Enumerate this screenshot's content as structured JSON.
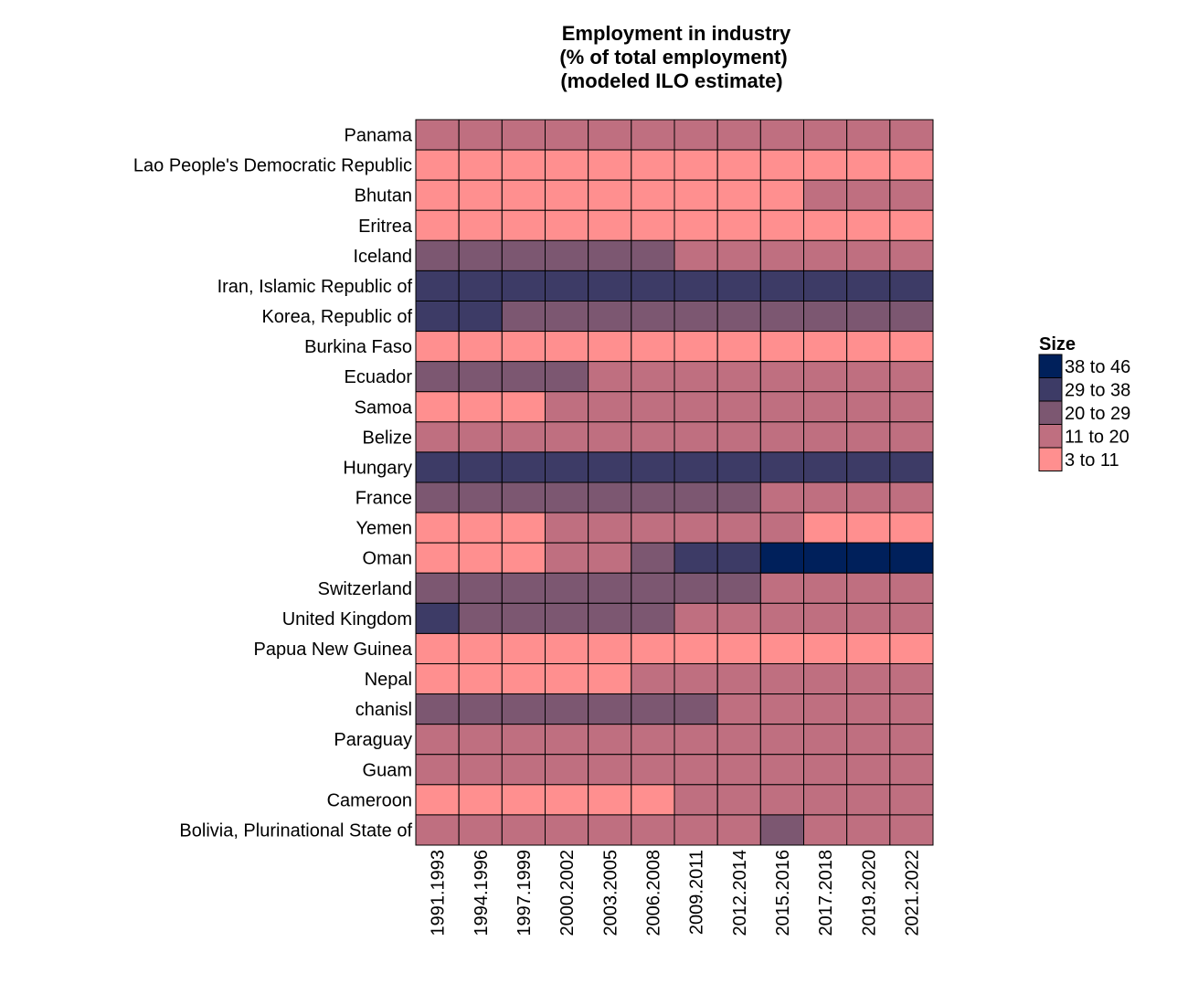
{
  "chart_data": {
    "type": "heatmap",
    "title_lines": [
      "Employment in industry",
      "(% of total employment)",
      "(modeled ILO estimate)"
    ],
    "xlabel": "",
    "ylabel": "",
    "x_categories": [
      "1991.1993",
      "1994.1996",
      "1997.1999",
      "2000.2002",
      "2003.2005",
      "2006.2008",
      "2009.2011",
      "2012.2014",
      "2015.2016",
      "2017.2018",
      "2019.2020",
      "2021.2022"
    ],
    "y_categories": [
      "Panama",
      "Lao People's Democratic Republic",
      "Bhutan",
      "Eritrea",
      "Iceland",
      "Iran, Islamic Republic of",
      "Korea, Republic of",
      "Burkina Faso",
      "Ecuador",
      "Samoa",
      "Belize",
      "Hungary",
      "France",
      "Yemen",
      "Oman",
      "Switzerland",
      "United Kingdom",
      "Papua New Guinea",
      "Nepal",
      "chanisl",
      "Paraguay",
      "Guam",
      "Cameroon",
      "Bolivia, Plurinational State of"
    ],
    "legend": {
      "title": "Size",
      "position": "right",
      "bins": [
        {
          "label": "38 to 46",
          "color": "#00205b"
        },
        {
          "label": "29 to 38",
          "color": "#3d3b66"
        },
        {
          "label": "20 to 29",
          "color": "#7c5771"
        },
        {
          "label": "11 to 20",
          "color": "#bf6f80"
        },
        {
          "label": "3 to 11",
          "color": "#ff8f8f"
        }
      ]
    },
    "bin_index_note": "cell values are legend bin indices: 0 = 38 to 46, 1 = 29 to 38, 2 = 20 to 29, 3 = 11 to 20, 4 = 3 to 11",
    "cells": [
      [
        3,
        3,
        3,
        3,
        3,
        3,
        3,
        3,
        3,
        3,
        3,
        3
      ],
      [
        4,
        4,
        4,
        4,
        4,
        4,
        4,
        4,
        4,
        4,
        4,
        4
      ],
      [
        4,
        4,
        4,
        4,
        4,
        4,
        4,
        4,
        4,
        3,
        3,
        3
      ],
      [
        4,
        4,
        4,
        4,
        4,
        4,
        4,
        4,
        4,
        4,
        4,
        4
      ],
      [
        2,
        2,
        2,
        2,
        2,
        2,
        3,
        3,
        3,
        3,
        3,
        3
      ],
      [
        1,
        1,
        1,
        1,
        1,
        1,
        1,
        1,
        1,
        1,
        1,
        1
      ],
      [
        1,
        1,
        2,
        2,
        2,
        2,
        2,
        2,
        2,
        2,
        2,
        2
      ],
      [
        4,
        4,
        4,
        4,
        4,
        4,
        4,
        4,
        4,
        4,
        4,
        4
      ],
      [
        2,
        2,
        2,
        2,
        3,
        3,
        3,
        3,
        3,
        3,
        3,
        3
      ],
      [
        4,
        4,
        4,
        3,
        3,
        3,
        3,
        3,
        3,
        3,
        3,
        3
      ],
      [
        3,
        3,
        3,
        3,
        3,
        3,
        3,
        3,
        3,
        3,
        3,
        3
      ],
      [
        1,
        1,
        1,
        1,
        1,
        1,
        1,
        1,
        1,
        1,
        1,
        1
      ],
      [
        2,
        2,
        2,
        2,
        2,
        2,
        2,
        2,
        3,
        3,
        3,
        3
      ],
      [
        4,
        4,
        4,
        3,
        3,
        3,
        3,
        3,
        3,
        4,
        4,
        4
      ],
      [
        4,
        4,
        4,
        3,
        3,
        2,
        1,
        1,
        0,
        0,
        0,
        0
      ],
      [
        2,
        2,
        2,
        2,
        2,
        2,
        2,
        2,
        3,
        3,
        3,
        3
      ],
      [
        1,
        2,
        2,
        2,
        2,
        2,
        3,
        3,
        3,
        3,
        3,
        3
      ],
      [
        4,
        4,
        4,
        4,
        4,
        4,
        4,
        4,
        4,
        4,
        4,
        4
      ],
      [
        4,
        4,
        4,
        4,
        4,
        3,
        3,
        3,
        3,
        3,
        3,
        3
      ],
      [
        2,
        2,
        2,
        2,
        2,
        2,
        2,
        3,
        3,
        3,
        3,
        3
      ],
      [
        3,
        3,
        3,
        3,
        3,
        3,
        3,
        3,
        3,
        3,
        3,
        3
      ],
      [
        3,
        3,
        3,
        3,
        3,
        3,
        3,
        3,
        3,
        3,
        3,
        3
      ],
      [
        4,
        4,
        4,
        4,
        4,
        4,
        3,
        3,
        3,
        3,
        3,
        3
      ],
      [
        3,
        3,
        3,
        3,
        3,
        3,
        3,
        3,
        2,
        3,
        3,
        3
      ]
    ],
    "grid": true
  }
}
